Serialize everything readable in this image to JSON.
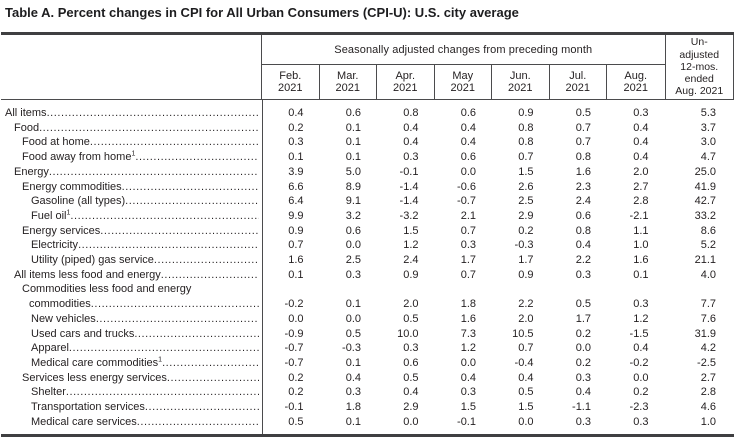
{
  "title": "Table A. Percent changes in CPI for All Urban Consumers (CPI-U): U.S. city average",
  "table": {
    "header": {
      "group_label": "Seasonally adjusted changes from preceding month",
      "months": [
        {
          "name": "Feb.",
          "year": "2021"
        },
        {
          "name": "Mar.",
          "year": "2021"
        },
        {
          "name": "Apr.",
          "year": "2021"
        },
        {
          "name": "May",
          "year": "2021"
        },
        {
          "name": "Jun.",
          "year": "2021"
        },
        {
          "name": "Jul.",
          "year": "2021"
        },
        {
          "name": "Aug.",
          "year": "2021"
        }
      ],
      "unadjusted_lines": [
        "Un-",
        "adjusted",
        "12-mos.",
        "ended",
        "Aug. 2021"
      ]
    },
    "rows": [
      {
        "label": "All items",
        "indent": 0,
        "values": [
          "0.4",
          "0.6",
          "0.8",
          "0.6",
          "0.9",
          "0.5",
          "0.3"
        ],
        "yoy": "5.3"
      },
      {
        "label": "Food",
        "indent": 1,
        "values": [
          "0.2",
          "0.1",
          "0.4",
          "0.4",
          "0.8",
          "0.7",
          "0.4"
        ],
        "yoy": "3.7"
      },
      {
        "label": "Food at home",
        "indent": 2,
        "values": [
          "0.3",
          "0.1",
          "0.4",
          "0.4",
          "0.8",
          "0.7",
          "0.4"
        ],
        "yoy": "3.0"
      },
      {
        "label": "Food away from home",
        "sup": "1",
        "indent": 2,
        "values": [
          "0.1",
          "0.1",
          "0.3",
          "0.6",
          "0.7",
          "0.8",
          "0.4"
        ],
        "yoy": "4.7"
      },
      {
        "label": "Energy",
        "indent": 1,
        "values": [
          "3.9",
          "5.0",
          "-0.1",
          "0.0",
          "1.5",
          "1.6",
          "2.0"
        ],
        "yoy": "25.0"
      },
      {
        "label": "Energy commodities",
        "indent": 2,
        "values": [
          "6.6",
          "8.9",
          "-1.4",
          "-0.6",
          "2.6",
          "2.3",
          "2.7"
        ],
        "yoy": "41.9"
      },
      {
        "label": "Gasoline (all types)",
        "indent": 3,
        "values": [
          "6.4",
          "9.1",
          "-1.4",
          "-0.7",
          "2.5",
          "2.4",
          "2.8"
        ],
        "yoy": "42.7"
      },
      {
        "label": "Fuel oil",
        "sup": "1",
        "indent": 3,
        "values": [
          "9.9",
          "3.2",
          "-3.2",
          "2.1",
          "2.9",
          "0.6",
          "-2.1"
        ],
        "yoy": "33.2"
      },
      {
        "label": "Energy services",
        "indent": 2,
        "values": [
          "0.9",
          "0.6",
          "1.5",
          "0.7",
          "0.2",
          "0.8",
          "1.1"
        ],
        "yoy": "8.6"
      },
      {
        "label": "Electricity",
        "indent": 3,
        "values": [
          "0.7",
          "0.0",
          "1.2",
          "0.3",
          "-0.3",
          "0.4",
          "1.0"
        ],
        "yoy": "5.2"
      },
      {
        "label": "Utility (piped) gas service",
        "indent": 3,
        "values": [
          "1.6",
          "2.5",
          "2.4",
          "1.7",
          "1.7",
          "2.2",
          "1.6"
        ],
        "yoy": "21.1"
      },
      {
        "label": "All items less food and energy",
        "indent": 1,
        "values": [
          "0.1",
          "0.3",
          "0.9",
          "0.7",
          "0.9",
          "0.3",
          "0.1"
        ],
        "yoy": "4.0"
      },
      {
        "label": "Commodities less food and energy",
        "label2": "commodities",
        "indent": 2,
        "values": [
          "-0.2",
          "0.1",
          "2.0",
          "1.8",
          "2.2",
          "0.5",
          "0.3"
        ],
        "yoy": "7.7"
      },
      {
        "label": "New vehicles",
        "indent": 3,
        "values": [
          "0.0",
          "0.0",
          "0.5",
          "1.6",
          "2.0",
          "1.7",
          "1.2"
        ],
        "yoy": "7.6"
      },
      {
        "label": "Used cars and trucks",
        "indent": 3,
        "values": [
          "-0.9",
          "0.5",
          "10.0",
          "7.3",
          "10.5",
          "0.2",
          "-1.5"
        ],
        "yoy": "31.9"
      },
      {
        "label": "Apparel",
        "indent": 3,
        "values": [
          "-0.7",
          "-0.3",
          "0.3",
          "1.2",
          "0.7",
          "0.0",
          "0.4"
        ],
        "yoy": "4.2"
      },
      {
        "label": "Medical care commodities",
        "sup": "1",
        "indent": 3,
        "values": [
          "-0.7",
          "0.1",
          "0.6",
          "0.0",
          "-0.4",
          "0.2",
          "-0.2"
        ],
        "yoy": "-2.5"
      },
      {
        "label": "Services less energy services",
        "indent": 2,
        "values": [
          "0.2",
          "0.4",
          "0.5",
          "0.4",
          "0.4",
          "0.3",
          "0.0"
        ],
        "yoy": "2.7"
      },
      {
        "label": "Shelter",
        "indent": 3,
        "values": [
          "0.2",
          "0.3",
          "0.4",
          "0.3",
          "0.5",
          "0.4",
          "0.2"
        ],
        "yoy": "2.8"
      },
      {
        "label": "Transportation services",
        "indent": 3,
        "values": [
          "-0.1",
          "1.8",
          "2.9",
          "1.5",
          "1.5",
          "-1.1",
          "-2.3"
        ],
        "yoy": "4.6"
      },
      {
        "label": "Medical care services",
        "indent": 3,
        "values": [
          "0.5",
          "0.1",
          "0.0",
          "-0.1",
          "0.0",
          "0.3",
          "0.3"
        ],
        "yoy": "1.0"
      }
    ],
    "colors": {
      "text": "#231f20",
      "rule_thick": "#3f3f41",
      "rule_thin": "#4b4b4d"
    }
  }
}
